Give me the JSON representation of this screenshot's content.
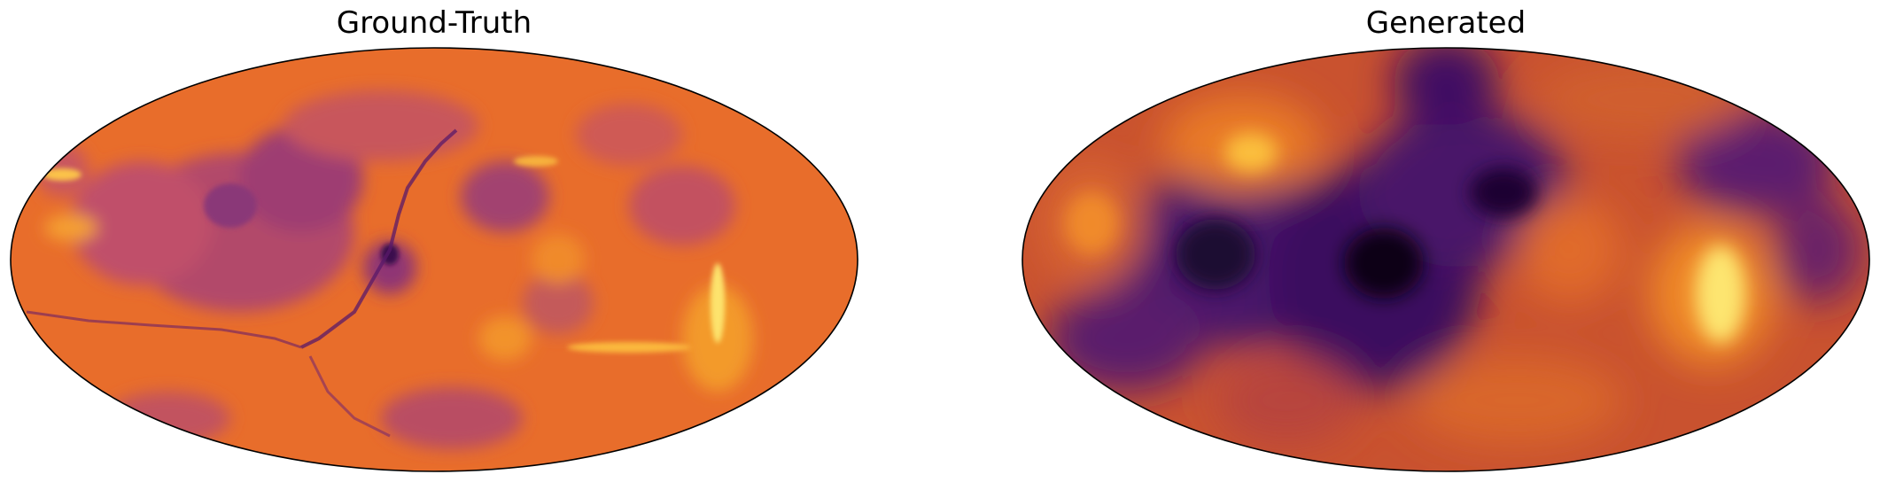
{
  "panels": [
    {
      "title": "Ground-Truth",
      "colormap": "inferno",
      "base_color": "#e56a2c"
    },
    {
      "title": "Generated",
      "colormap": "inferno",
      "base_color": "#d0572f"
    }
  ],
  "colors": {
    "ellipse_outline": "#000000",
    "background": "#ffffff"
  }
}
